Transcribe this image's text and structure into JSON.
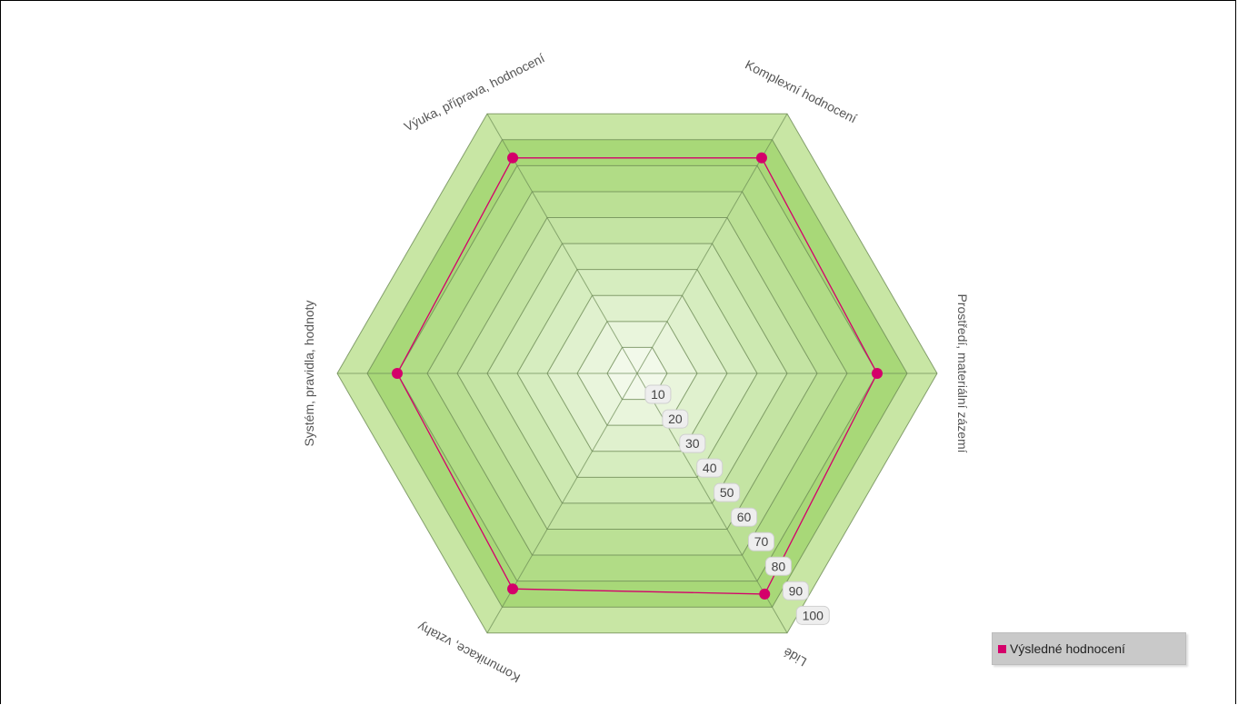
{
  "chart_data": {
    "type": "radar",
    "categories": [
      "Komplexní hodnocení",
      "Prostředí, materiální zázemí",
      "Lidé",
      "Komunikace, vztahy",
      "Systém, pravidla, hodnoty",
      "Výuka, příprava, hodnocení"
    ],
    "series": [
      {
        "name": "Výsledné hodnocení",
        "values": [
          83,
          80,
          85,
          83,
          80,
          83
        ]
      }
    ],
    "ticks": [
      "10",
      "20",
      "30",
      "40",
      "50",
      "60",
      "70",
      "80",
      "90",
      "100"
    ],
    "rlim": [
      0,
      100
    ],
    "grid": true,
    "legend_position": "bottom-right",
    "colors": {
      "band_light": "#c8e6a4",
      "band_dark": "#a8d878",
      "center": "#f2f9ea",
      "grid_line": "#6b8a54",
      "series": "#d4006a"
    }
  }
}
